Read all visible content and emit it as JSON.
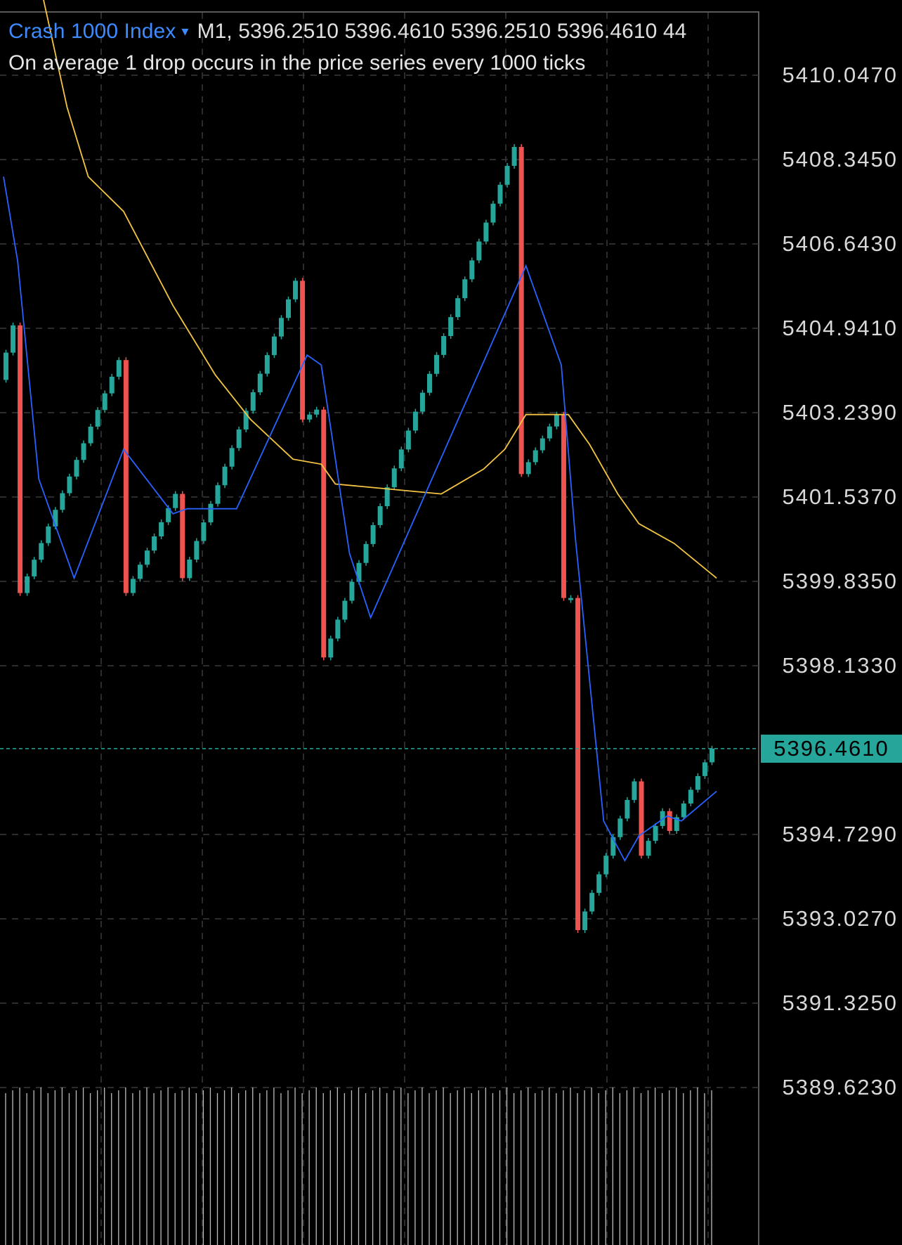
{
  "header": {
    "symbol": "Crash 1000 Index",
    "caret": "▾",
    "ohlc_text": "M1, 5396.2510 5396.4610 5396.2510 5396.4610 44",
    "description": "On average 1 drop occurs in the price series every 1000 ticks"
  },
  "price_axis": {
    "labels": [
      "5410.0470",
      "5408.3450",
      "5406.6430",
      "5404.9410",
      "5403.2390",
      "5401.5370",
      "5399.8350",
      "5398.1330",
      "5394.7290",
      "5393.0270",
      "5391.3250",
      "5389.6230"
    ],
    "current_price": "5396.4610"
  },
  "colors": {
    "background": "#000000",
    "grid": "#3a3a3a",
    "bull": "#26a69a",
    "bear": "#ef5350",
    "ma_fast": "#2962ff",
    "ma_slow": "#f5c542",
    "current_line": "#26a69a",
    "axis_border": "#5a5a5a",
    "volume": "#bdbdbd"
  },
  "chart_data": {
    "type": "candlestick",
    "y_range": [
      5387.9,
      5411.8
    ],
    "y_ticks": [
      5410.047,
      5408.345,
      5406.643,
      5404.941,
      5403.239,
      5401.537,
      5399.835,
      5398.133,
      5396.461,
      5394.729,
      5393.027,
      5391.325,
      5389.623
    ],
    "current_price": 5396.461,
    "spikes": [
      {
        "index": 2,
        "high": 5405.0,
        "low": 5399.6
      },
      {
        "index": 17,
        "high": 5404.3,
        "low": 5399.6
      },
      {
        "index": 25,
        "high": 5401.6,
        "low": 5399.9
      },
      {
        "index": 42,
        "high": 5405.9,
        "low": 5403.1
      },
      {
        "index": 45,
        "high": 5403.3,
        "low": 5398.3
      },
      {
        "index": 73,
        "high": 5408.6,
        "low": 5402.0
      },
      {
        "index": 79,
        "high": 5403.2,
        "low": 5399.5
      },
      {
        "index": 81,
        "high": 5399.5,
        "low": 5392.8
      },
      {
        "index": 90,
        "high": 5395.8,
        "low": 5394.3
      },
      {
        "index": 94,
        "high": 5395.2,
        "low": 5394.8
      }
    ],
    "bar_count": 101,
    "ma_fast": [
      [
        0,
        5408.0
      ],
      [
        2,
        5406.3
      ],
      [
        5,
        5401.9
      ],
      [
        10,
        5399.9
      ],
      [
        17,
        5402.5
      ],
      [
        24,
        5401.2
      ],
      [
        26,
        5401.3
      ],
      [
        30,
        5401.3
      ],
      [
        33,
        5401.3
      ],
      [
        43,
        5404.4
      ],
      [
        45,
        5404.2
      ],
      [
        49,
        5400.4
      ],
      [
        52,
        5399.1
      ],
      [
        74,
        5406.2
      ],
      [
        79,
        5404.2
      ],
      [
        81,
        5400.7
      ],
      [
        85,
        5395.0
      ],
      [
        88,
        5394.2
      ],
      [
        90,
        5394.7
      ],
      [
        94,
        5395.1
      ],
      [
        96,
        5395.0
      ],
      [
        101,
        5395.6
      ]
    ],
    "ma_slow": [
      [
        5,
        5412.0
      ],
      [
        9,
        5409.4
      ],
      [
        12,
        5408.0
      ],
      [
        17,
        5407.3
      ],
      [
        24,
        5405.4
      ],
      [
        30,
        5404.0
      ],
      [
        35,
        5403.1
      ],
      [
        41,
        5402.3
      ],
      [
        45,
        5402.2
      ],
      [
        47,
        5401.8
      ],
      [
        62,
        5401.6
      ],
      [
        68,
        5402.1
      ],
      [
        71,
        5402.5
      ],
      [
        74,
        5403.2
      ],
      [
        78,
        5403.2
      ],
      [
        80,
        5403.2
      ],
      [
        83,
        5402.6
      ],
      [
        87,
        5401.6
      ],
      [
        90,
        5401.0
      ],
      [
        95,
        5400.6
      ],
      [
        101,
        5399.9
      ]
    ]
  }
}
